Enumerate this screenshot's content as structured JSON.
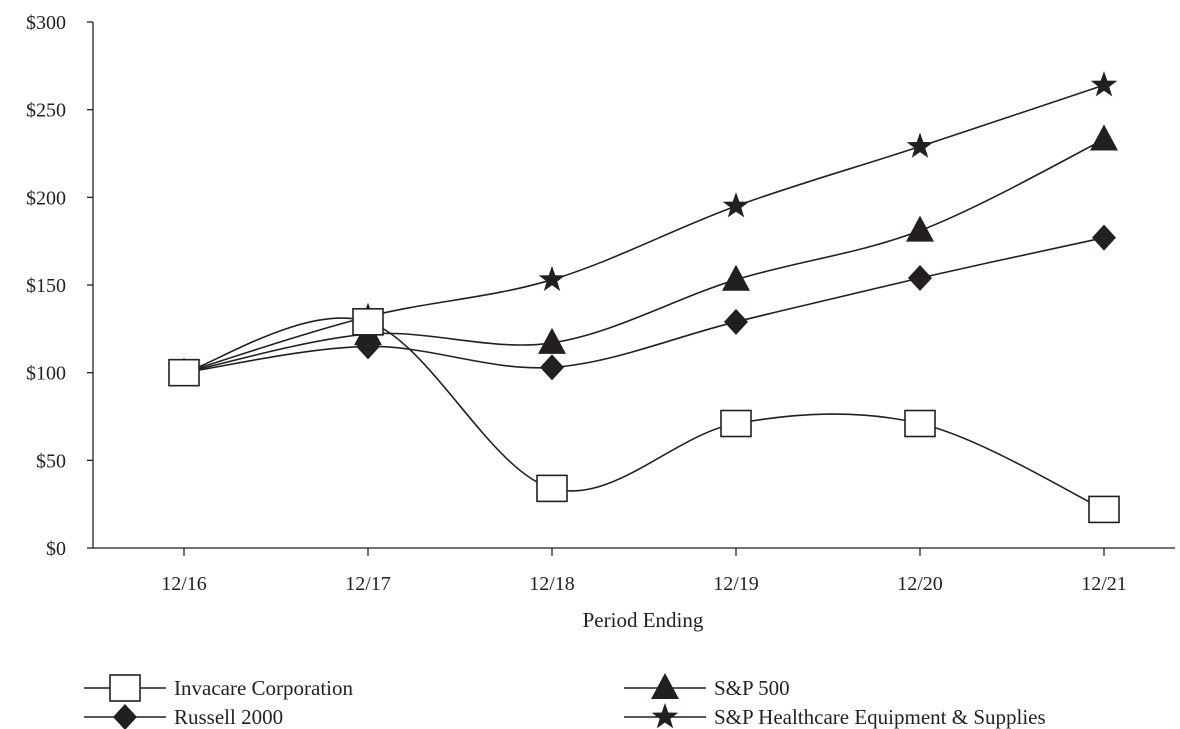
{
  "chart_data": {
    "type": "line",
    "title": "",
    "xlabel": "Period Ending",
    "ylabel": "",
    "categories": [
      "12/16",
      "12/17",
      "12/18",
      "12/19",
      "12/20",
      "12/21"
    ],
    "ylim": [
      0,
      300
    ],
    "yticks": [
      0,
      50,
      100,
      150,
      200,
      250,
      300
    ],
    "ytick_labels": [
      "$0",
      "$50",
      "$100",
      "$150",
      "$200",
      "$250",
      "$300"
    ],
    "grid": false,
    "legend_position": "bottom",
    "series": [
      {
        "name": "Invacare Corporation",
        "marker": "open-square",
        "values": [
          100,
          129,
          34,
          71,
          71,
          22
        ]
      },
      {
        "name": "Russell 2000",
        "marker": "diamond",
        "values": [
          100,
          115,
          103,
          129,
          154,
          177
        ]
      },
      {
        "name": "S&P 500",
        "marker": "triangle",
        "values": [
          100,
          122,
          117,
          153,
          181,
          233
        ]
      },
      {
        "name": "S&P Healthcare Equipment & Supplies",
        "marker": "star",
        "values": [
          100,
          132,
          153,
          195,
          229,
          264
        ]
      }
    ],
    "colors": {
      "ink": "#231f20",
      "background": "#ffffff"
    }
  }
}
